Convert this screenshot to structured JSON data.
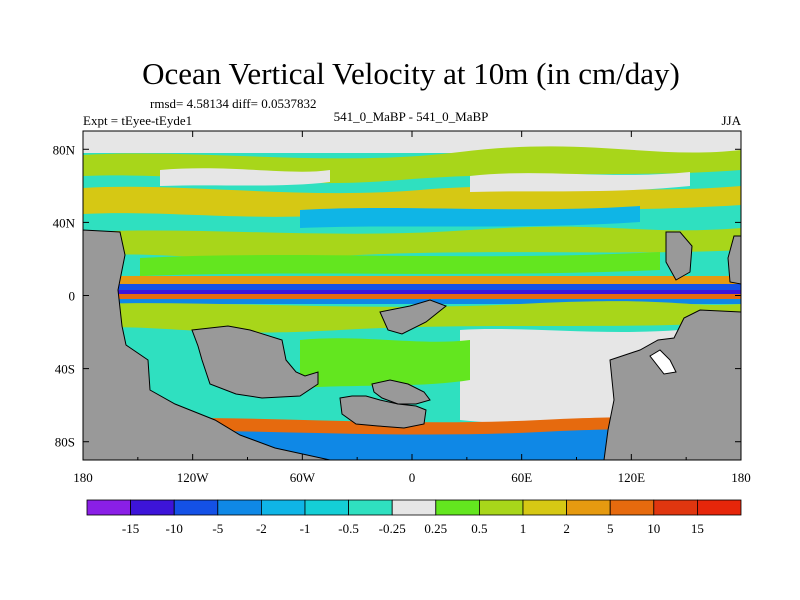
{
  "chart_data": {
    "type": "heatmap",
    "title": "Ocean Vertical Velocity at 10m (in cm/day)",
    "stats": "rmsd= 4.58134 diff= 0.0537832",
    "center_label": "541_0_MaBP - 541_0_MaBP",
    "left_label": "Expt = tEyee-tEyde1",
    "right_label": "JJA",
    "x_ticks": [
      "180",
      "120W",
      "60W",
      "0",
      "60E",
      "120E",
      "180"
    ],
    "x_range": [
      -180,
      180
    ],
    "y_ticks": [
      "80N",
      "40N",
      "0",
      "40S",
      "80S"
    ],
    "y_values": [
      80,
      40,
      0,
      -40,
      -80
    ],
    "y_range": [
      -90,
      90
    ],
    "land_color": "#999999",
    "colorbar": {
      "labels": [
        "-15",
        "-10",
        "-5",
        "-2",
        "-1",
        "-0.5",
        "-0.25",
        "0.25",
        "0.5",
        "1",
        "2",
        "5",
        "10",
        "15"
      ],
      "colors": [
        "#8a1fe6",
        "#3d14d9",
        "#1451e6",
        "#0f88e6",
        "#0fb5e6",
        "#14cfd6",
        "#2fe0c0",
        "#e6e6e6",
        "#63e61f",
        "#a8d61a",
        "#d6c814",
        "#e69a10",
        "#e66a0e",
        "#e0360f",
        "#e6260a"
      ]
    }
  }
}
